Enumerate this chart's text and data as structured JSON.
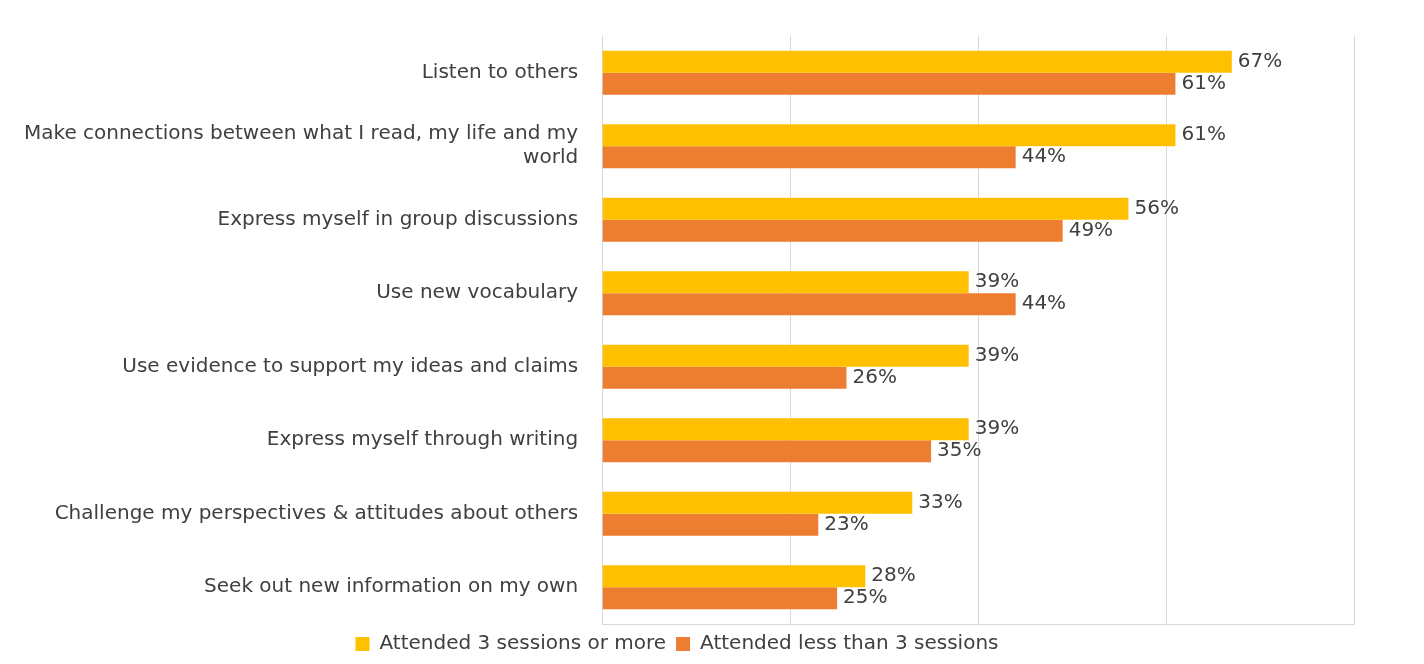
{
  "chart_data": {
    "type": "bar",
    "orientation": "horizontal",
    "categories": [
      "Listen to others",
      "Make connections between what I read, my life and my world",
      "Express myself in group discussions",
      "Use new vocabulary",
      "Use evidence to support my ideas and claims",
      "Express myself through writing",
      "Challenge my perspectives & attitudes about others",
      "Seek out new information on my own"
    ],
    "series": [
      {
        "name": "Attended 3 sessions or more",
        "color": "#ffc000",
        "values": [
          67,
          61,
          56,
          39,
          39,
          39,
          33,
          28
        ],
        "value_labels": [
          "67%",
          "61%",
          "56%",
          "39%",
          "39%",
          "39%",
          "33%",
          "28%"
        ]
      },
      {
        "name": "Attended less than 3 sessions",
        "color": "#ed7d31",
        "values": [
          61,
          44,
          49,
          44,
          26,
          35,
          23,
          25
        ],
        "value_labels": [
          "61%",
          "44%",
          "49%",
          "44%",
          "26%",
          "35%",
          "23%",
          "25%"
        ]
      }
    ],
    "tick_labels": "y",
    "grid": "x",
    "legend": "bottom"
  }
}
